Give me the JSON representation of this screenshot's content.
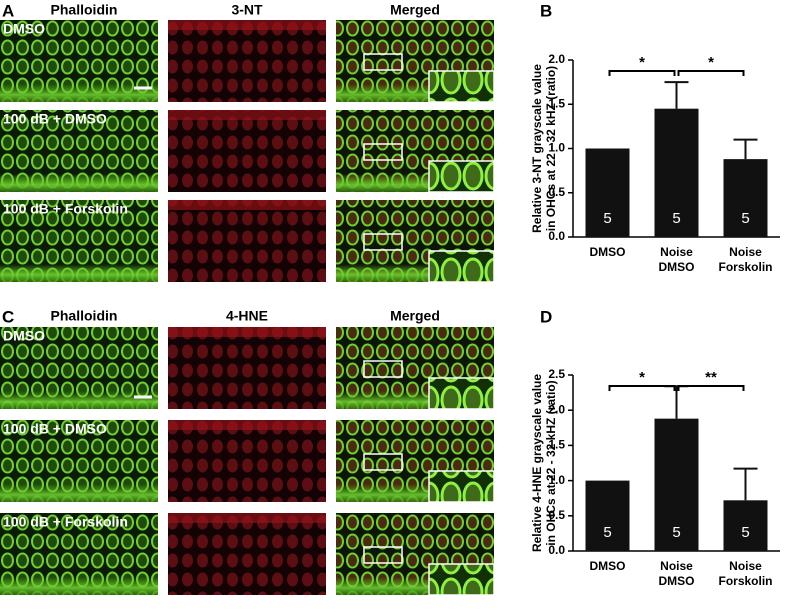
{
  "panels": [
    {
      "letter": "A",
      "columns": [
        "Phalloidin",
        "3-NT",
        "Merged"
      ],
      "rows": [
        "DMSO",
        "100 dB + DMSO",
        "100 dB + Forskolin"
      ]
    },
    {
      "letter": "C",
      "columns": [
        "Phalloidin",
        "4-HNE",
        "Merged"
      ],
      "rows": [
        "DMSO",
        "100 dB + DMSO",
        "100 dB + Forskolin"
      ]
    }
  ],
  "chart_data": [
    {
      "type": "bar",
      "panel_label": "B",
      "ylabel": [
        "Relative 3-NT grayscale value",
        "in OHCs at 22 - 32 kHZ (ratio)"
      ],
      "categories": [
        [
          "DMSO"
        ],
        [
          "Noise",
          "DMSO"
        ],
        [
          "Noise",
          "Forskolin"
        ]
      ],
      "values": [
        1.0,
        1.45,
        0.88
      ],
      "errors": [
        null,
        0.3,
        0.22
      ],
      "n": [
        5,
        5,
        5
      ],
      "color": "#111111",
      "ylim": [
        0,
        2.0
      ],
      "yticks": [
        {
          "value": 0,
          "label": "0.0"
        },
        {
          "value": 0.5,
          "label": "0.5"
        },
        {
          "value": 1,
          "label": "1.0"
        },
        {
          "value": 1.5,
          "label": "1.5"
        },
        {
          "value": 2,
          "label": "2.0"
        }
      ],
      "significance": [
        {
          "pair": [
            0,
            1
          ],
          "label": "*"
        },
        {
          "pair": [
            1,
            2
          ],
          "label": "*"
        }
      ]
    },
    {
      "type": "bar",
      "panel_label": "D",
      "ylabel": [
        "Relative 4-HNE grayscale value",
        "in OHCs at 22 - 32 kHZ (ratio)"
      ],
      "categories": [
        [
          "DMSO"
        ],
        [
          "Noise",
          "DMSO"
        ],
        [
          "Noise",
          "Forskolin"
        ]
      ],
      "values": [
        1.0,
        1.88,
        0.72
      ],
      "errors": [
        null,
        0.46,
        0.45
      ],
      "n": [
        5,
        5,
        5
      ],
      "color": "#111111",
      "ylim": [
        0,
        2.5
      ],
      "yticks": [
        {
          "value": 0,
          "label": "0.0"
        },
        {
          "value": 0.5,
          "label": "0.5"
        },
        {
          "value": 1,
          "label": "1.0"
        },
        {
          "value": 1.5,
          "label": "1.5"
        },
        {
          "value": 2,
          "label": "2.0"
        },
        {
          "value": 2.5,
          "label": "2.5"
        }
      ],
      "significance": [
        {
          "pair": [
            0,
            1
          ],
          "label": "*"
        },
        {
          "pair": [
            1,
            2
          ],
          "label": "**"
        }
      ]
    }
  ]
}
